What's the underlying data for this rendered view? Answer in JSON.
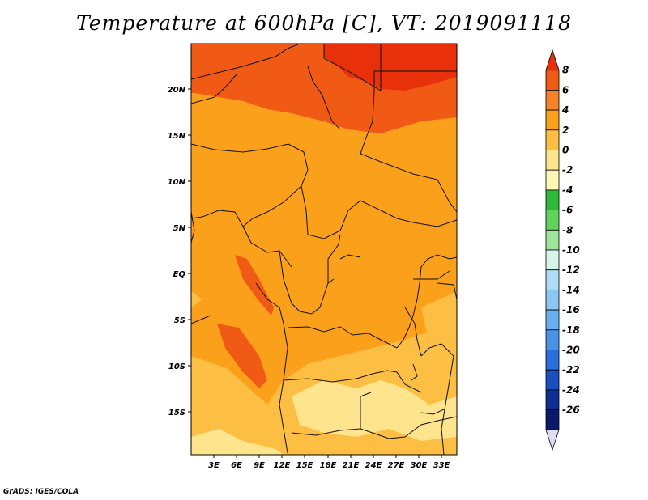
{
  "title": "Temperature at 600hPa [C], VT: 2019091118",
  "credit": "GrADS: IGES/COLA",
  "lat_labels": [
    "20N",
    "15N",
    "10N",
    "5N",
    "EQ",
    "5S",
    "10S",
    "15S"
  ],
  "lon_labels": [
    "3E",
    "6E",
    "9E",
    "12E",
    "15E",
    "18E",
    "21E",
    "24E",
    "27E",
    "30E",
    "33E"
  ],
  "legend": {
    "levels": [
      "8",
      "6",
      "4",
      "2",
      "0",
      "-2",
      "-4",
      "-6",
      "-8",
      "-10",
      "-12",
      "-14",
      "-16",
      "-18",
      "-20",
      "-22",
      "-24",
      "-26"
    ],
    "colors": [
      "#e8300a",
      "#f05a14",
      "#f58228",
      "#fba01a",
      "#fdbe44",
      "#fee48c",
      "#fff6b4",
      "#2fb83a",
      "#5fd35a",
      "#9ee59a",
      "#d6f5e8",
      "#aedcf5",
      "#8cc6f2",
      "#6aaff0",
      "#4a92e6",
      "#2a6fdc",
      "#1a4fc0",
      "#0e2f96",
      "#0a1a6a",
      "#dedcf6"
    ]
  },
  "field_colors": {
    "c_ge6": "#e8300a",
    "c_4_6": "#f05a14",
    "c_2_4": "#fba01a",
    "c_0_2": "#fdbe44",
    "c_m2_0": "#fee48c"
  }
}
